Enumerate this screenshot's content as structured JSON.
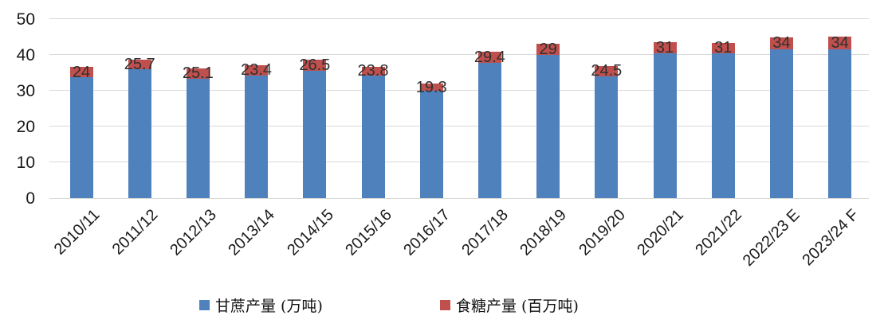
{
  "chart_data": {
    "type": "bar",
    "stacked": true,
    "title": "",
    "categories": [
      "2010/11",
      "2011/12",
      "2012/13",
      "2013/14",
      "2014/15",
      "2015/16",
      "2016/17",
      "2017/18",
      "2018/19",
      "2019/20",
      "2020/21",
      "2021/22",
      "2022/23 E",
      "2023/24 F"
    ],
    "series": [
      {
        "name": "甘蔗产量 (万吨)",
        "color": "#4F81BD",
        "values": [
          33.8,
          36.0,
          33.3,
          34.3,
          35.5,
          34.2,
          30.0,
          37.7,
          40.0,
          34.0,
          40.5,
          40.4,
          41.5,
          41.6
        ]
      },
      {
        "name": "食糖产量 (百万吨)",
        "color": "#C0504D",
        "values": [
          24,
          25.7,
          25.1,
          23.4,
          26.5,
          23.8,
          19.3,
          29.4,
          29,
          24.5,
          31,
          31,
          34,
          34
        ],
        "data_labels": [
          "24",
          "25.7",
          "25.1",
          "23.4",
          "26.5",
          "23.8",
          "19.3",
          "29.4",
          "29",
          "24.5",
          "31",
          "31",
          "34",
          "34"
        ],
        "visual_stack_tops": [
          36.6,
          38.7,
          36.3,
          37.1,
          38.7,
          36.7,
          32.0,
          40.9,
          43.1,
          37.0,
          43.5,
          43.4,
          45.0,
          45.1
        ]
      }
    ],
    "xlabel": "",
    "ylabel": "",
    "ylim": [
      0,
      50
    ],
    "yticks": [
      0,
      10,
      20,
      30,
      40,
      50
    ],
    "grid": true,
    "legend_position": "bottom",
    "colors": {
      "sugarcane_bar": "#4F81BD",
      "sugar_bar": "#C0504D",
      "gridline": "#D9D9D9",
      "axis_text": "#1A1A1A",
      "label_text": "#303030"
    }
  }
}
